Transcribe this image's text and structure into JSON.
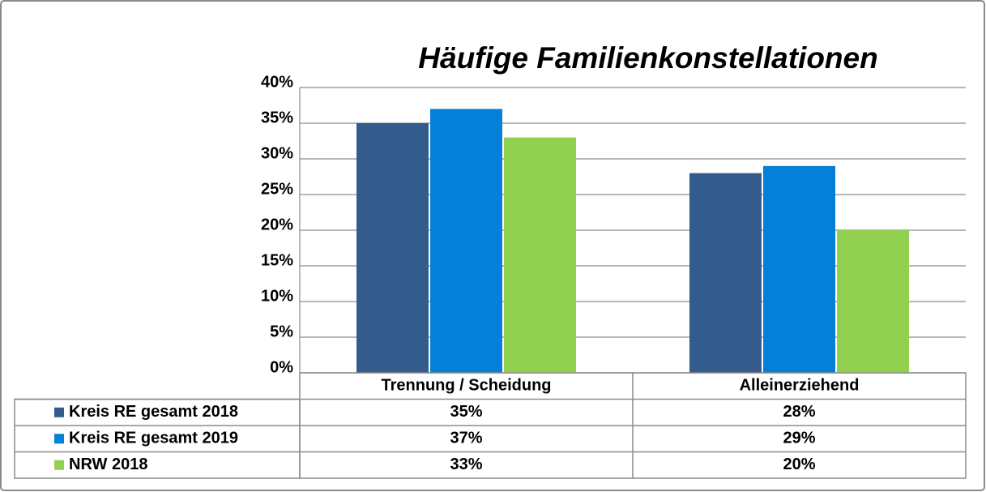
{
  "chart_data": {
    "type": "bar",
    "title": "Häufige Familienkonstellationen",
    "categories": [
      "Trennung / Scheidung",
      "Alleinerziehend"
    ],
    "series": [
      {
        "name": "Kreis RE gesamt 2018",
        "color": "#335b8c",
        "values": [
          35,
          28
        ],
        "value_labels": [
          "35%",
          "28%"
        ]
      },
      {
        "name": "Kreis RE gesamt 2019",
        "color": "#0480d8",
        "values": [
          37,
          29
        ],
        "value_labels": [
          "37%",
          "29%"
        ]
      },
      {
        "name": "NRW 2018",
        "color": "#92d050",
        "values": [
          33,
          20
        ],
        "value_labels": [
          "33%",
          "20%"
        ]
      }
    ],
    "ylim": [
      0,
      40
    ],
    "yticks": [
      {
        "value": 0,
        "label": "0%"
      },
      {
        "value": 5,
        "label": "5%"
      },
      {
        "value": 10,
        "label": "10%"
      },
      {
        "value": 15,
        "label": "15%"
      },
      {
        "value": 20,
        "label": "20%"
      },
      {
        "value": 25,
        "label": "25%"
      },
      {
        "value": 30,
        "label": "30%"
      },
      {
        "value": 35,
        "label": "35%"
      },
      {
        "value": 40,
        "label": "40%"
      }
    ],
    "grid": true,
    "legend": "data-table"
  }
}
